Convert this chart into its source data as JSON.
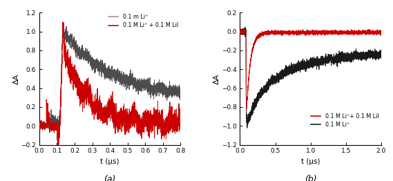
{
  "figsize": [
    5.69,
    2.62
  ],
  "dpi": 100,
  "background": "#ffffff",
  "panel_a": {
    "xlim": [
      0.0,
      0.8
    ],
    "ylim": [
      -0.2,
      1.2
    ],
    "xticks": [
      0.0,
      0.1,
      0.2,
      0.3,
      0.4,
      0.5,
      0.6,
      0.7,
      0.8
    ],
    "yticks": [
      -0.2,
      0.0,
      0.2,
      0.4,
      0.6,
      0.8,
      1.0,
      1.2
    ],
    "xlabel": "t (μs)",
    "ylabel": "ΔA",
    "label_a": "(a)",
    "legend_gray": "0.1 m Li⁺",
    "legend_red": "0.1 M Li⁺ + 0.1 M LiI",
    "gray_color": "#999999",
    "black_color": "#1a1a1a",
    "red_color": "#cc0000"
  },
  "panel_b": {
    "xlim": [
      0.0,
      2.0
    ],
    "ylim": [
      -1.2,
      0.2
    ],
    "xticks": [
      0.0,
      0.5,
      1.0,
      1.5,
      2.0
    ],
    "yticks": [
      -1.2,
      -1.0,
      -0.8,
      -0.6,
      -0.4,
      -0.2,
      0.0,
      0.2
    ],
    "xlabel": "t (μs)",
    "ylabel": "ΔA",
    "label_b": "(b)",
    "legend_red": "0.1 M Li⁺+ 0.1 M LiI",
    "legend_black": "0.1 M Li⁺",
    "black_color": "#1a1a1a",
    "red_color": "#cc0000"
  }
}
